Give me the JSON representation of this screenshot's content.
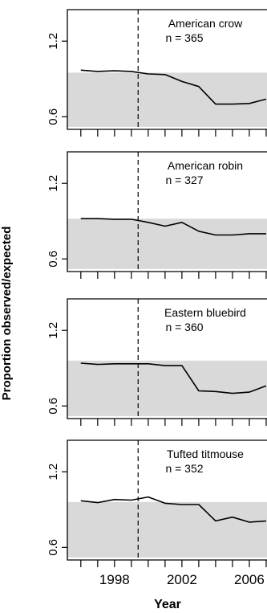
{
  "ylabel": "Proportion observed/expected",
  "xlabel": "Year",
  "colors": {
    "band": "#d9d9d9",
    "line": "#000000",
    "frame": "#000000"
  },
  "chart_data": [
    {
      "type": "line",
      "species": "American crow",
      "n_label": "n = 365",
      "x": [
        1996,
        1997,
        1998,
        1999,
        2000,
        2001,
        2002,
        2003,
        2004,
        2005,
        2006,
        2007
      ],
      "values": [
        0.97,
        0.96,
        0.965,
        0.96,
        0.94,
        0.935,
        0.88,
        0.84,
        0.7,
        0.7,
        0.705,
        0.74
      ],
      "yticks": [
        0.6,
        1.2
      ],
      "ytick_labels": [
        "0.6",
        "1.2"
      ],
      "ylim": [
        0.5,
        1.45
      ],
      "band": [
        0.52,
        0.95
      ],
      "vline_x": 1999.4
    },
    {
      "type": "line",
      "species": "American robin",
      "n_label": "n = 327",
      "x": [
        1996,
        1997,
        1998,
        1999,
        2000,
        2001,
        2002,
        2003,
        2004,
        2005,
        2006,
        2007
      ],
      "values": [
        0.92,
        0.92,
        0.915,
        0.915,
        0.89,
        0.86,
        0.89,
        0.82,
        0.79,
        0.79,
        0.8,
        0.8
      ],
      "yticks": [
        0.6,
        1.2
      ],
      "ytick_labels": [
        "0.6",
        "1.2"
      ],
      "ylim": [
        0.5,
        1.45
      ],
      "band": [
        0.52,
        0.92
      ],
      "vline_x": 1999.4
    },
    {
      "type": "line",
      "species": "Eastern bluebird",
      "n_label": "n = 360",
      "x": [
        1996,
        1997,
        1998,
        1999,
        2000,
        2001,
        2002,
        2003,
        2004,
        2005,
        2006,
        2007
      ],
      "values": [
        0.94,
        0.93,
        0.935,
        0.935,
        0.935,
        0.92,
        0.92,
        0.72,
        0.715,
        0.7,
        0.71,
        0.76
      ],
      "yticks": [
        0.6,
        1.2
      ],
      "ytick_labels": [
        "0.6",
        "1.2"
      ],
      "ylim": [
        0.5,
        1.45
      ],
      "band": [
        0.52,
        0.96
      ],
      "vline_x": 1999.4
    },
    {
      "type": "line",
      "species": "Tufted titmouse",
      "n_label": "n = 352",
      "x": [
        1996,
        1997,
        1998,
        1999,
        2000,
        2001,
        2002,
        2003,
        2004,
        2005,
        2006,
        2007
      ],
      "values": [
        0.97,
        0.955,
        0.98,
        0.975,
        1.0,
        0.95,
        0.94,
        0.94,
        0.81,
        0.84,
        0.8,
        0.81
      ],
      "yticks": [
        0.6,
        1.2
      ],
      "ytick_labels": [
        "0.6",
        "1.2"
      ],
      "ylim": [
        0.5,
        1.45
      ],
      "band": [
        0.52,
        0.96
      ],
      "vline_x": 1999.4
    }
  ],
  "xticks": [
    1996,
    1997,
    1998,
    1999,
    2000,
    2001,
    2002,
    2003,
    2004,
    2005,
    2006,
    2007
  ],
  "xtick_labels": [
    {
      "x": 1998,
      "label": "1998"
    },
    {
      "x": 2002,
      "label": "2002"
    },
    {
      "x": 2006,
      "label": "2006"
    }
  ]
}
